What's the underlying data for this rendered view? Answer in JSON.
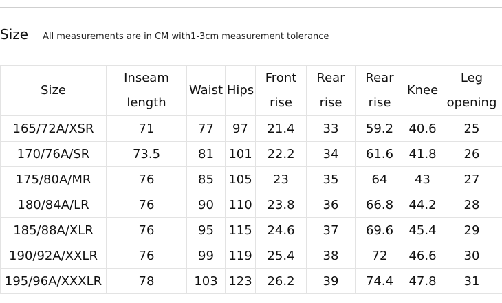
{
  "header": {
    "title": "Size",
    "note": "All measurements are in CM with1-3cm measurement tolerance"
  },
  "table": {
    "columns": [
      {
        "line1": "Size",
        "line2": ""
      },
      {
        "line1": "Inseam",
        "line2": "length"
      },
      {
        "line1": "Waist",
        "line2": ""
      },
      {
        "line1": "Hips",
        "line2": ""
      },
      {
        "line1": "Front",
        "line2": "rise"
      },
      {
        "line1": "Rear",
        "line2": "rise"
      },
      {
        "line1": "Rear",
        "line2": "rise"
      },
      {
        "line1": "Knee",
        "line2": ""
      },
      {
        "line1": "Leg",
        "line2": "opening"
      }
    ],
    "rows": [
      [
        "165/72A/XSR",
        "71",
        "77",
        "97",
        "21.4",
        "33",
        "59.2",
        "40.6",
        "25"
      ],
      [
        "170/76A/SR",
        "73.5",
        "81",
        "101",
        "22.2",
        "34",
        "61.6",
        "41.8",
        "26"
      ],
      [
        "175/80A/MR",
        "76",
        "85",
        "105",
        "23",
        "35",
        "64",
        "43",
        "27"
      ],
      [
        "180/84A/LR",
        "76",
        "90",
        "110",
        "23.8",
        "36",
        "66.8",
        "44.2",
        "28"
      ],
      [
        "185/88A/XLR",
        "76",
        "95",
        "115",
        "24.6",
        "37",
        "69.6",
        "45.4",
        "29"
      ],
      [
        "190/92A/XXLR",
        "76",
        "99",
        "119",
        "25.4",
        "38",
        "72",
        "46.6",
        "30"
      ],
      [
        "195/96A/XXXLR",
        "78",
        "103",
        "123",
        "26.2",
        "39",
        "74.4",
        "47.8",
        "31"
      ]
    ]
  }
}
